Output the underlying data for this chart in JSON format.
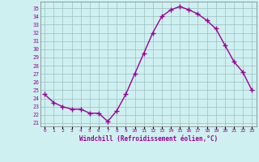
{
  "x": [
    0,
    1,
    2,
    3,
    4,
    5,
    6,
    7,
    8,
    9,
    10,
    11,
    12,
    13,
    14,
    15,
    16,
    17,
    18,
    19,
    20,
    21,
    22,
    23
  ],
  "y": [
    24.5,
    23.5,
    23.0,
    22.7,
    22.7,
    22.2,
    22.2,
    21.2,
    22.5,
    24.5,
    27.0,
    29.5,
    32.0,
    34.0,
    34.8,
    35.2,
    34.8,
    34.3,
    33.5,
    32.5,
    30.5,
    28.5,
    27.2,
    25.0
  ],
  "line_color": "#990099",
  "marker": "+",
  "xlabel": "Windchill (Refroidissement éolien,°C)",
  "ytick_labels": [
    "21",
    "22",
    "23",
    "24",
    "25",
    "26",
    "27",
    "28",
    "29",
    "30",
    "31",
    "32",
    "33",
    "34",
    "35"
  ],
  "ytick_values": [
    21,
    22,
    23,
    24,
    25,
    26,
    27,
    28,
    29,
    30,
    31,
    32,
    33,
    34,
    35
  ],
  "ylim": [
    20.6,
    35.8
  ],
  "xlim": [
    -0.5,
    23.5
  ],
  "bg_color": "#cff0f0",
  "grid_color": "#9bbfbf",
  "spine_color": "#7a7a7a"
}
